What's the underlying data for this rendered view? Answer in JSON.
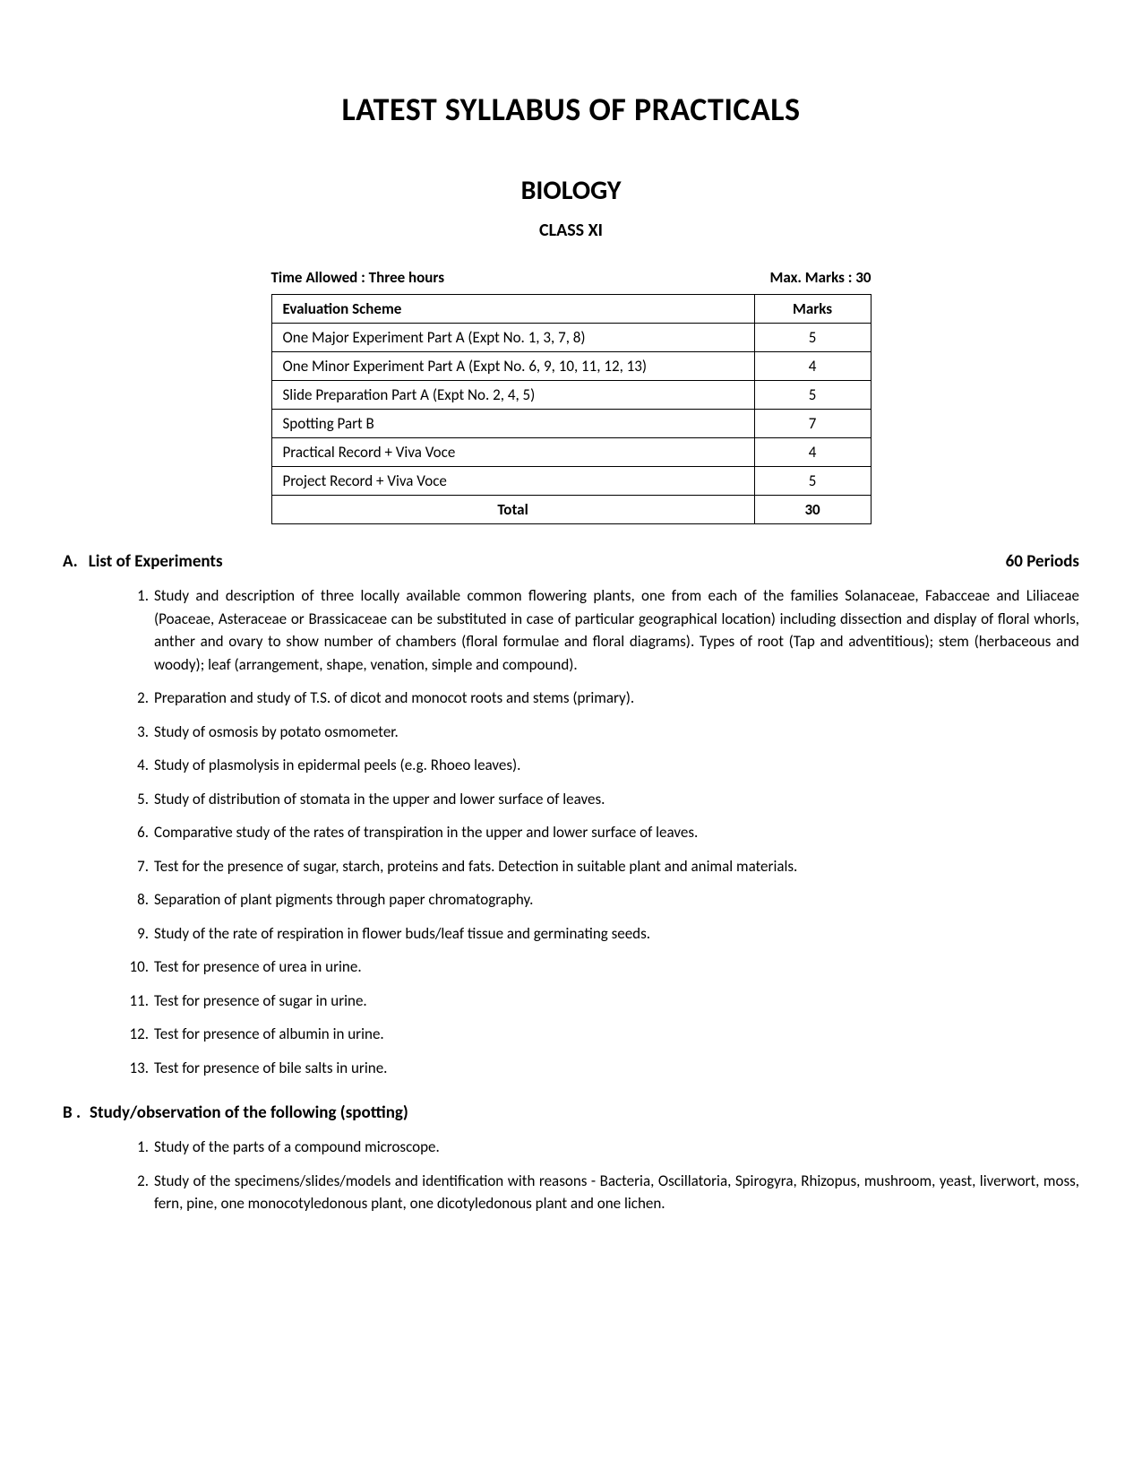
{
  "title": "LATEST SYLLABUS OF PRACTICALS",
  "subject": "BIOLOGY",
  "class": "CLASS XI",
  "time_allowed_label": "Time Allowed : Three hours",
  "max_marks_label": "Max. Marks : 30",
  "table": {
    "header_scheme": "Evaluation Scheme",
    "header_marks": "Marks",
    "rows": [
      {
        "scheme": "One Major Experiment Part A (Expt No. 1, 3, 7, 8)",
        "marks": "5"
      },
      {
        "scheme": "One Minor Experiment Part A (Expt No. 6, 9, 10, 11, 12, 13)",
        "marks": "4"
      },
      {
        "scheme": "Slide Preparation Part A (Expt No. 2, 4, 5)",
        "marks": "5"
      },
      {
        "scheme": "Spotting Part B",
        "marks": "7"
      },
      {
        "scheme": "Practical Record + Viva Voce",
        "marks": "4"
      },
      {
        "scheme": "Project Record + Viva Voce",
        "marks": "5"
      }
    ],
    "total_label": "Total",
    "total_marks": "30"
  },
  "section_a": {
    "letter": "A.",
    "title": "List of Experiments",
    "periods": "60 Periods",
    "items": [
      "Study and description of three locally available common flowering plants, one from each of the families Solanaceae, Fabacceae and Liliaceae (Poaceae, Asteraceae or Brassicaceae can be substituted in case of particular geographical location) including dissection and display of floral whorls, anther and ovary to show number of chambers (floral formulae and floral diagrams). Types of root (Tap and adventitious); stem (herbaceous and woody); leaf (arrangement, shape, venation, simple and compound).",
      "Preparation and study of T.S. of dicot and monocot roots and stems (primary).",
      "Study of osmosis by potato osmometer.",
      "Study of plasmolysis in epidermal peels (e.g. Rhoeo leaves).",
      "Study of distribution of stomata in the upper and lower surface of leaves.",
      "Comparative study of the rates of transpiration in the upper and lower surface of leaves.",
      "Test for the presence of sugar, starch, proteins and fats. Detection in suitable plant and animal materials.",
      "Separation of plant pigments through paper chromatography.",
      "Study of the rate of respiration in flower buds/leaf tissue and germinating seeds.",
      "Test for presence of urea in urine.",
      "Test for presence of sugar in urine.",
      "Test for presence of albumin in urine.",
      "Test for presence of bile salts in urine."
    ]
  },
  "section_b": {
    "letter": "B .",
    "title": "Study/observation of the following (spotting)",
    "items": [
      "Study of the parts of a compound microscope.",
      "Study of the specimens/slides/models and identification with reasons - Bacteria, Oscillatoria, Spirogyra, Rhizopus, mushroom, yeast, liverwort, moss, fern, pine, one monocotyledonous plant, one dicotyledonous plant and one lichen."
    ]
  }
}
